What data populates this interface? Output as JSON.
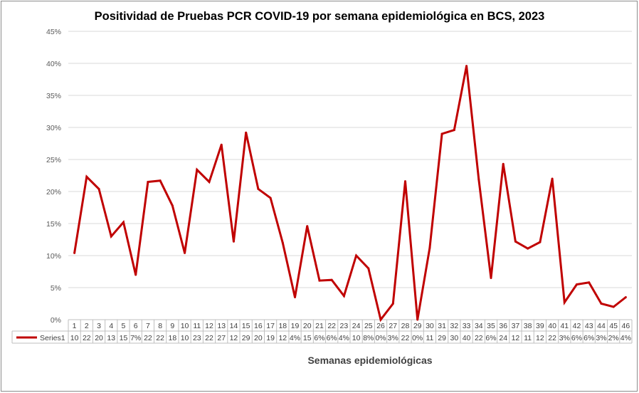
{
  "chart_data": {
    "type": "line",
    "title": "Positividad de Pruebas PCR COVID-19 por semana epidemiológica en BCS, 2023",
    "xlabel": "Semanas epidemiológicas",
    "ylabel": "",
    "ylim": [
      0,
      45
    ],
    "yticks": [
      "0%",
      "5%",
      "10%",
      "15%",
      "20%",
      "25%",
      "30%",
      "35%",
      "40%",
      "45%"
    ],
    "grid": true,
    "legend": "data-table-left",
    "line_color": "#c00000",
    "categories": [
      "1",
      "2",
      "3",
      "4",
      "5",
      "6",
      "7",
      "8",
      "9",
      "10",
      "11",
      "12",
      "13",
      "14",
      "15",
      "16",
      "17",
      "18",
      "19",
      "20",
      "21",
      "22",
      "23",
      "24",
      "25",
      "26",
      "27",
      "28",
      "29",
      "30",
      "31",
      "32",
      "33",
      "34",
      "35",
      "36",
      "37",
      "38",
      "39",
      "40",
      "41",
      "42",
      "43",
      "44",
      "45",
      "46"
    ],
    "series": [
      {
        "name": "Series1",
        "values": [
          10.4,
          22.3,
          20.4,
          13.0,
          15.2,
          7.0,
          21.5,
          21.7,
          17.8,
          10.4,
          23.4,
          21.5,
          27.3,
          12.2,
          29.2,
          20.4,
          19.0,
          12.0,
          3.5,
          14.6,
          6.1,
          6.2,
          3.7,
          10.0,
          8.0,
          0.0,
          2.5,
          21.6,
          0.0,
          11.2,
          29.0,
          29.6,
          39.6,
          21.9,
          6.5,
          24.3,
          12.2,
          11.1,
          12.1,
          22.0,
          2.7,
          5.5,
          5.8,
          2.5,
          2.0,
          3.5
        ],
        "table_labels": [
          "10",
          "22",
          "20",
          "13",
          "15",
          "7%",
          "22",
          "22",
          "18",
          "10",
          "23",
          "22",
          "27",
          "12",
          "29",
          "20",
          "19",
          "12",
          "4%",
          "15",
          "6%",
          "6%",
          "4%",
          "10",
          "8%",
          "0%",
          "3%",
          "22",
          "0%",
          "11",
          "29",
          "30",
          "40",
          "22",
          "6%",
          "24",
          "12",
          "11",
          "12",
          "22",
          "3%",
          "6%",
          "6%",
          "3%",
          "2%",
          "4%"
        ]
      }
    ]
  }
}
